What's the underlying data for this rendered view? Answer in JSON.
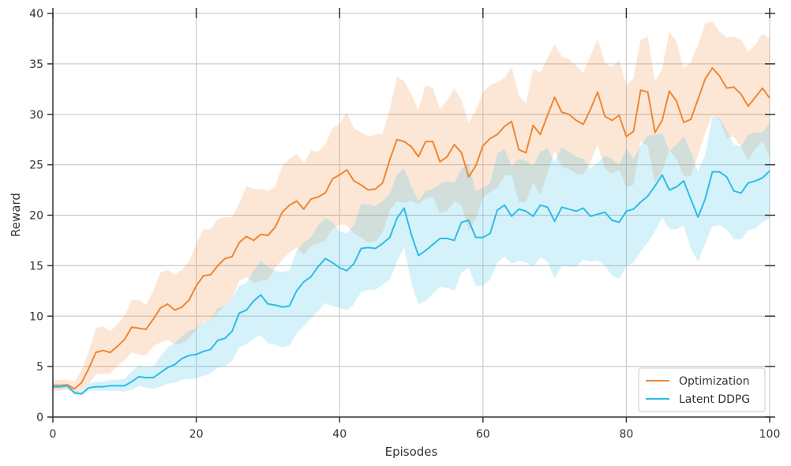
{
  "chart_data": {
    "type": "line",
    "title": "",
    "xlabel": "Episodes",
    "ylabel": "Reward",
    "xlim": [
      0,
      100
    ],
    "ylim": [
      0,
      40
    ],
    "xticks": [
      0,
      20,
      40,
      60,
      80,
      100
    ],
    "yticks": [
      0,
      5,
      10,
      15,
      20,
      25,
      30,
      35,
      40
    ],
    "grid": true,
    "legend_position": "bottom-right",
    "x": [
      0,
      1,
      2,
      3,
      4,
      5,
      6,
      7,
      8,
      9,
      10,
      11,
      12,
      13,
      14,
      15,
      16,
      17,
      18,
      19,
      20,
      21,
      22,
      23,
      24,
      25,
      26,
      27,
      28,
      29,
      30,
      31,
      32,
      33,
      34,
      35,
      36,
      37,
      38,
      39,
      40,
      41,
      42,
      43,
      44,
      45,
      46,
      47,
      48,
      49,
      50,
      51,
      52,
      53,
      54,
      55,
      56,
      57,
      58,
      59,
      60,
      61,
      62,
      63,
      64,
      65,
      66,
      67,
      68,
      69,
      70,
      71,
      72,
      73,
      74,
      75,
      76,
      77,
      78,
      79,
      80,
      81,
      82,
      83,
      84,
      85,
      86,
      87,
      88,
      89,
      90,
      91,
      92,
      93,
      94,
      95,
      96,
      97,
      98,
      99,
      100
    ],
    "series": [
      {
        "name": "Optimization",
        "color": "#ef8633",
        "values": [
          3.1,
          3.1,
          3.2,
          2.8,
          3.4,
          4.8,
          6.4,
          6.6,
          6.4,
          7.0,
          7.7,
          8.9,
          8.8,
          8.7,
          9.7,
          10.8,
          11.2,
          10.6,
          10.9,
          11.6,
          13.0,
          14.0,
          14.1,
          15.0,
          15.7,
          15.9,
          17.3,
          17.9,
          17.5,
          18.1,
          18.0,
          18.8,
          20.3,
          21.0,
          21.4,
          20.6,
          21.6,
          21.8,
          22.2,
          23.6,
          24.0,
          24.5,
          23.4,
          23.0,
          22.5,
          22.6,
          23.2,
          25.5,
          27.5,
          27.3,
          26.8,
          25.8,
          27.3,
          27.3,
          25.3,
          25.8,
          27.0,
          26.2,
          23.8,
          24.9,
          26.9,
          27.6,
          28.0,
          28.8,
          29.3,
          26.5,
          26.2,
          28.9,
          28.0,
          29.9,
          31.7,
          30.2,
          30.0,
          29.4,
          29.0,
          30.5,
          32.2,
          29.8,
          29.4,
          29.9,
          27.8,
          28.3,
          32.4,
          32.2,
          28.2,
          29.4,
          32.3,
          31.3,
          29.2,
          29.5,
          31.5,
          33.5,
          34.6,
          33.8,
          32.6,
          32.7,
          32.0,
          30.8,
          31.7,
          32.6,
          31.6
        ],
        "upper": [
          3.6,
          3.7,
          3.7,
          3.5,
          4.6,
          6.5,
          8.8,
          9.0,
          8.5,
          9.2,
          10.0,
          11.6,
          11.6,
          11.1,
          12.5,
          14.3,
          14.6,
          14.1,
          14.6,
          15.4,
          17.1,
          18.6,
          18.6,
          19.6,
          19.8,
          19.8,
          21.2,
          22.9,
          22.6,
          22.6,
          22.4,
          22.8,
          24.9,
          25.6,
          26.1,
          25.2,
          26.4,
          26.3,
          27.0,
          28.6,
          29.0,
          30.2,
          28.6,
          28.2,
          27.8,
          28.0,
          28.1,
          30.5,
          33.7,
          33.3,
          32.0,
          30.4,
          32.9,
          32.6,
          30.5,
          31.4,
          32.6,
          31.4,
          29.2,
          30.4,
          32.2,
          32.9,
          33.2,
          33.6,
          34.7,
          31.9,
          31.1,
          34.5,
          34.1,
          35.6,
          37.0,
          35.7,
          35.5,
          34.8,
          34.1,
          35.8,
          37.5,
          35.1,
          34.7,
          35.4,
          32.9,
          33.6,
          37.4,
          37.7,
          33.3,
          34.5,
          38.2,
          37.2,
          34.5,
          35.2,
          36.9,
          39.0,
          39.2,
          38.2,
          37.6,
          37.7,
          37.4,
          36.2,
          36.9,
          38.0,
          37.5
        ],
        "lower": [
          2.6,
          2.6,
          2.7,
          2.4,
          2.6,
          3.3,
          4.2,
          4.3,
          4.3,
          5.1,
          5.6,
          6.4,
          6.2,
          6.1,
          7.0,
          7.4,
          7.6,
          7.2,
          7.3,
          7.8,
          8.6,
          9.5,
          9.5,
          10.4,
          11.0,
          11.7,
          13.5,
          13.9,
          13.3,
          13.5,
          13.6,
          14.8,
          15.6,
          16.3,
          16.8,
          16.1,
          16.9,
          17.2,
          17.5,
          18.6,
          19.1,
          19.0,
          18.2,
          17.8,
          17.3,
          17.4,
          18.3,
          20.5,
          21.4,
          21.2,
          21.4,
          21.1,
          21.7,
          21.8,
          20.2,
          20.4,
          21.4,
          21.0,
          18.5,
          19.6,
          21.7,
          22.3,
          22.7,
          23.9,
          24.0,
          21.3,
          21.3,
          23.3,
          22.0,
          24.2,
          26.4,
          24.8,
          24.6,
          24.1,
          24.0,
          25.3,
          27.0,
          24.6,
          24.1,
          24.5,
          22.8,
          23.0,
          27.3,
          26.9,
          23.2,
          24.4,
          26.5,
          25.6,
          23.9,
          23.9,
          26.0,
          28.1,
          29.9,
          29.5,
          27.7,
          27.8,
          26.8,
          25.4,
          26.6,
          27.3,
          25.8
        ]
      },
      {
        "name": "Latent DDPG",
        "color": "#2bbde6",
        "values": [
          3.0,
          3.0,
          3.1,
          2.4,
          2.3,
          2.9,
          3.0,
          3.0,
          3.1,
          3.1,
          3.1,
          3.5,
          4.0,
          3.9,
          3.9,
          4.4,
          4.9,
          5.2,
          5.8,
          6.1,
          6.2,
          6.5,
          6.7,
          7.6,
          7.8,
          8.5,
          10.3,
          10.6,
          11.5,
          12.1,
          11.2,
          11.1,
          10.9,
          11.0,
          12.5,
          13.4,
          13.9,
          14.9,
          15.7,
          15.3,
          14.8,
          14.5,
          15.2,
          16.7,
          16.8,
          16.7,
          17.2,
          17.8,
          19.7,
          20.7,
          18.1,
          16.0,
          16.5,
          17.1,
          17.7,
          17.7,
          17.5,
          19.3,
          19.5,
          17.8,
          17.8,
          18.2,
          20.5,
          21.0,
          19.9,
          20.6,
          20.4,
          19.9,
          21.0,
          20.8,
          19.4,
          20.8,
          20.6,
          20.4,
          20.7,
          19.9,
          20.1,
          20.3,
          19.5,
          19.3,
          20.4,
          20.6,
          21.3,
          21.9,
          22.9,
          24.0,
          22.5,
          22.8,
          23.4,
          21.6,
          19.8,
          21.6,
          24.3,
          24.3,
          23.8,
          22.4,
          22.2,
          23.2,
          23.4,
          23.7,
          24.4
        ],
        "upper": [
          3.3,
          3.3,
          3.3,
          2.6,
          2.5,
          3.3,
          3.5,
          3.5,
          3.7,
          3.7,
          3.8,
          4.5,
          5.1,
          5.0,
          5.0,
          6.0,
          6.9,
          7.3,
          8.0,
          8.6,
          8.8,
          9.4,
          9.6,
          10.8,
          11.0,
          11.7,
          13.0,
          13.3,
          14.5,
          15.5,
          14.9,
          14.5,
          14.4,
          14.5,
          16.5,
          17.3,
          17.8,
          19.0,
          19.7,
          19.3,
          18.4,
          18.2,
          19.0,
          21.1,
          21.1,
          20.9,
          21.4,
          22.1,
          24.1,
          24.6,
          22.9,
          21.4,
          22.4,
          22.6,
          23.1,
          23.4,
          23.2,
          24.6,
          25.1,
          22.4,
          22.7,
          23.2,
          26.1,
          26.6,
          24.8,
          25.6,
          25.4,
          24.9,
          26.3,
          26.6,
          25.3,
          26.7,
          26.3,
          25.8,
          25.6,
          24.6,
          25.2,
          25.9,
          25.6,
          25.0,
          26.6,
          25.6,
          26.9,
          27.9,
          28.0,
          28.1,
          26.4,
          27.0,
          27.8,
          26.3,
          24.3,
          26.0,
          29.8,
          29.6,
          28.4,
          27.0,
          26.8,
          28.0,
          28.2,
          28.2,
          29.2
        ],
        "lower": [
          2.8,
          2.8,
          2.9,
          2.2,
          2.1,
          2.6,
          2.6,
          2.6,
          2.6,
          2.6,
          2.5,
          2.7,
          3.1,
          2.9,
          2.8,
          3.0,
          3.3,
          3.4,
          3.7,
          3.8,
          3.8,
          4.1,
          4.3,
          4.9,
          5.0,
          5.6,
          6.9,
          7.2,
          7.8,
          8.1,
          7.3,
          7.2,
          6.9,
          7.1,
          8.3,
          9.0,
          9.8,
          10.5,
          11.3,
          11.0,
          10.8,
          10.6,
          11.2,
          12.4,
          12.6,
          12.6,
          13.1,
          13.6,
          15.4,
          16.8,
          13.3,
          11.2,
          11.5,
          12.2,
          12.9,
          12.8,
          12.5,
          14.3,
          14.8,
          13.0,
          13.0,
          13.6,
          15.3,
          15.9,
          15.2,
          15.5,
          15.3,
          14.9,
          15.8,
          15.4,
          13.7,
          15.0,
          14.9,
          14.9,
          15.6,
          15.4,
          15.5,
          15.0,
          14.0,
          13.7,
          15.0,
          15.3,
          16.4,
          17.3,
          18.4,
          19.8,
          18.6,
          18.6,
          19.0,
          16.7,
          15.4,
          17.2,
          18.9,
          19.0,
          18.6,
          17.6,
          17.6,
          18.5,
          18.7,
          19.3,
          19.7
        ]
      }
    ]
  }
}
